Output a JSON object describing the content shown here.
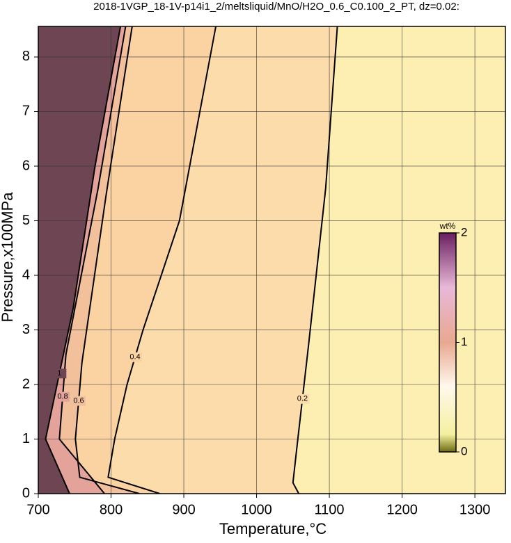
{
  "chart_data": {
    "type": "contour",
    "title": "2018-1VGP_18-1V-p14i1_2/meltsliquid/MnO/H2O_0.6_C0.100_2_PT, dz=0.02:",
    "xlabel": "Temperature,°C",
    "ylabel": "Pressure,x100MPa",
    "xlim": [
      700,
      1342
    ],
    "ylim": [
      0,
      8.56
    ],
    "xticks": [
      700,
      800,
      900,
      1000,
      1100,
      1200,
      1300
    ],
    "yticks": [
      0,
      1,
      2,
      3,
      4,
      5,
      6,
      7,
      8
    ],
    "grid": true,
    "background": "#fdeeb2",
    "contours": [
      {
        "level": 0.2,
        "color": "#fcdcab",
        "x": [
          1111,
          1095,
          1071,
          1055,
          1050,
          1058
        ],
        "y": [
          8.56,
          5.6,
          2.67,
          0.8,
          0.2,
          0
        ]
      },
      {
        "level": 0.4,
        "color": "#fbd3a3",
        "x": [
          944,
          894,
          844,
          822,
          805,
          796,
          867
        ],
        "y": [
          8.56,
          5.0,
          3.0,
          2.0,
          1.0,
          0.3,
          0
        ]
      },
      {
        "level": 0.6,
        "color": "#f3c09c",
        "x": [
          829,
          793,
          760,
          751,
          757,
          839
        ],
        "y": [
          8.56,
          5.45,
          2.4,
          1.0,
          0.3,
          0
        ]
      },
      {
        "level": 0.8,
        "color": "#e3a39a",
        "x": [
          820,
          782,
          738,
          729,
          791
        ],
        "y": [
          8.56,
          5.58,
          2.55,
          1.0,
          0
        ]
      },
      {
        "level": 1,
        "color": "#6e4552",
        "x": [
          813,
          778,
          748,
          710,
          743
        ],
        "y": [
          8.56,
          6.0,
          3.4,
          1.0,
          0
        ]
      }
    ],
    "colorbar": {
      "label": "wt%",
      "lim": [
        0,
        2
      ],
      "ticks": [
        0,
        1,
        2
      ]
    }
  }
}
